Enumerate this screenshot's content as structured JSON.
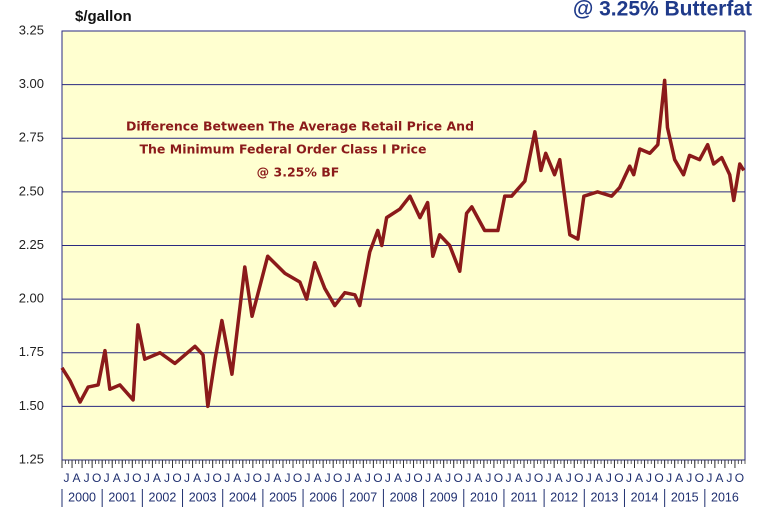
{
  "chart_data": {
    "type": "line",
    "title": "@ 3.25% Butterfat",
    "y_axis_label": "$/gallon",
    "annotation": [
      "Difference Between The Average Retail Price And",
      "The Minimum Federal Order Class I Price",
      "@ 3.25% BF"
    ],
    "x": [
      2000.0,
      2000.2,
      2000.45,
      2000.65,
      2000.9,
      2001.07,
      2001.19,
      2001.44,
      2001.77,
      2001.89,
      2002.06,
      2002.44,
      2002.81,
      2003.31,
      2003.51,
      2003.63,
      2003.81,
      2003.98,
      2004.23,
      2004.55,
      2004.73,
      2005.12,
      2005.55,
      2005.92,
      2006.09,
      2006.29,
      2006.54,
      2006.79,
      2007.04,
      2007.29,
      2007.41,
      2007.66,
      2007.86,
      2007.96,
      2008.08,
      2008.41,
      2008.66,
      2008.91,
      2009.1,
      2009.23,
      2009.4,
      2009.65,
      2009.9,
      2010.07,
      2010.2,
      2010.52,
      2010.85,
      2011.02,
      2011.19,
      2011.52,
      2011.77,
      2011.92,
      2012.04,
      2012.26,
      2012.39,
      2012.46,
      2012.64,
      2012.84,
      2012.99,
      2013.33,
      2013.68,
      2013.88,
      2014.13,
      2014.23,
      2014.38,
      2014.63,
      2014.83,
      2015.0,
      2015.07,
      2015.25,
      2015.47,
      2015.62,
      2015.87,
      2016.07,
      2016.22,
      2016.42,
      2016.62,
      2016.72,
      2016.87,
      2016.97
    ],
    "series": [
      {
        "name": "Difference",
        "color": "#8b1a1a",
        "values": [
          1.68,
          1.62,
          1.52,
          1.59,
          1.6,
          1.76,
          1.58,
          1.6,
          1.53,
          1.88,
          1.72,
          1.75,
          1.7,
          1.78,
          1.74,
          1.5,
          1.72,
          1.9,
          1.65,
          2.15,
          1.92,
          2.2,
          2.12,
          2.08,
          2.0,
          2.17,
          2.05,
          1.97,
          2.03,
          2.02,
          1.97,
          2.22,
          2.32,
          2.25,
          2.38,
          2.42,
          2.48,
          2.38,
          2.45,
          2.2,
          2.3,
          2.25,
          2.13,
          2.4,
          2.43,
          2.32,
          2.32,
          2.48,
          2.48,
          2.55,
          2.78,
          2.6,
          2.68,
          2.58,
          2.65,
          2.55,
          2.3,
          2.28,
          2.48,
          2.5,
          2.48,
          2.52,
          2.62,
          2.58,
          2.7,
          2.68,
          2.72,
          3.02,
          2.8,
          2.65,
          2.58,
          2.67,
          2.65,
          2.72,
          2.63,
          2.66,
          2.58,
          2.46,
          2.63,
          2.6
        ]
      }
    ],
    "xlim": [
      2000,
      2017
    ],
    "ylim": [
      1.25,
      3.25
    ],
    "yticks": [
      {
        "value": 1.25,
        "label": "1.25"
      },
      {
        "value": 1.5,
        "label": "1.50"
      },
      {
        "value": 1.75,
        "label": "1.75"
      },
      {
        "value": 2.0,
        "label": "2.00"
      },
      {
        "value": 2.25,
        "label": "2.25"
      },
      {
        "value": 2.5,
        "label": "2.50"
      },
      {
        "value": 2.75,
        "label": "2.75"
      },
      {
        "value": 3.0,
        "label": "3.00"
      },
      {
        "value": 3.25,
        "label": "3.25"
      }
    ],
    "xticks": [
      {
        "value": 2000,
        "label": "J"
      },
      {
        "value": 2000.25,
        "label": "A"
      },
      {
        "value": 2000.5,
        "label": "J"
      },
      {
        "value": 2000.75,
        "label": "O"
      },
      {
        "value": 2001,
        "label": "J"
      },
      {
        "value": 2001.25,
        "label": "A"
      },
      {
        "value": 2001.5,
        "label": "J"
      },
      {
        "value": 2001.75,
        "label": "O"
      },
      {
        "value": 2002,
        "label": "J"
      },
      {
        "value": 2002.25,
        "label": "A"
      },
      {
        "value": 2002.5,
        "label": "J"
      },
      {
        "value": 2002.75,
        "label": "O"
      },
      {
        "value": 2003,
        "label": "J"
      },
      {
        "value": 2003.25,
        "label": "A"
      },
      {
        "value": 2003.5,
        "label": "J"
      },
      {
        "value": 2003.75,
        "label": "O"
      },
      {
        "value": 2004,
        "label": "J"
      },
      {
        "value": 2004.25,
        "label": "A"
      },
      {
        "value": 2004.5,
        "label": "J"
      },
      {
        "value": 2004.75,
        "label": "O"
      },
      {
        "value": 2005,
        "label": "J"
      },
      {
        "value": 2005.25,
        "label": "A"
      },
      {
        "value": 2005.5,
        "label": "J"
      },
      {
        "value": 2005.75,
        "label": "O"
      },
      {
        "value": 2006,
        "label": "J"
      },
      {
        "value": 2006.25,
        "label": "A"
      },
      {
        "value": 2006.5,
        "label": "J"
      },
      {
        "value": 2006.75,
        "label": "O"
      },
      {
        "value": 2007,
        "label": "J"
      },
      {
        "value": 2007.25,
        "label": "A"
      },
      {
        "value": 2007.5,
        "label": "J"
      },
      {
        "value": 2007.75,
        "label": "O"
      },
      {
        "value": 2008,
        "label": "J"
      },
      {
        "value": 2008.25,
        "label": "A"
      },
      {
        "value": 2008.5,
        "label": "J"
      },
      {
        "value": 2008.75,
        "label": "O"
      },
      {
        "value": 2009,
        "label": "J"
      },
      {
        "value": 2009.25,
        "label": "A"
      },
      {
        "value": 2009.5,
        "label": "J"
      },
      {
        "value": 2009.75,
        "label": "O"
      },
      {
        "value": 2010,
        "label": "J"
      },
      {
        "value": 2010.25,
        "label": "A"
      },
      {
        "value": 2010.5,
        "label": "J"
      },
      {
        "value": 2010.75,
        "label": "O"
      },
      {
        "value": 2011,
        "label": "J"
      },
      {
        "value": 2011.25,
        "label": "A"
      },
      {
        "value": 2011.5,
        "label": "J"
      },
      {
        "value": 2011.75,
        "label": "O"
      },
      {
        "value": 2012,
        "label": "J"
      },
      {
        "value": 2012.25,
        "label": "A"
      },
      {
        "value": 2012.5,
        "label": "J"
      },
      {
        "value": 2012.75,
        "label": "O"
      },
      {
        "value": 2013,
        "label": "J"
      },
      {
        "value": 2013.25,
        "label": "A"
      },
      {
        "value": 2013.5,
        "label": "J"
      },
      {
        "value": 2013.75,
        "label": "O"
      },
      {
        "value": 2014,
        "label": "J"
      },
      {
        "value": 2014.25,
        "label": "A"
      },
      {
        "value": 2014.5,
        "label": "J"
      },
      {
        "value": 2014.75,
        "label": "O"
      },
      {
        "value": 2015,
        "label": "J"
      },
      {
        "value": 2015.25,
        "label": "A"
      },
      {
        "value": 2015.5,
        "label": "J"
      },
      {
        "value": 2015.75,
        "label": "O"
      },
      {
        "value": 2016,
        "label": "J"
      },
      {
        "value": 2016.25,
        "label": "A"
      },
      {
        "value": 2016.5,
        "label": "J"
      },
      {
        "value": 2016.75,
        "label": "O"
      }
    ],
    "year_ticks": [
      2000,
      2001,
      2002,
      2003,
      2004,
      2005,
      2006,
      2007,
      2008,
      2009,
      2010,
      2011,
      2012,
      2013,
      2014,
      2015,
      2016
    ],
    "grid": true
  }
}
